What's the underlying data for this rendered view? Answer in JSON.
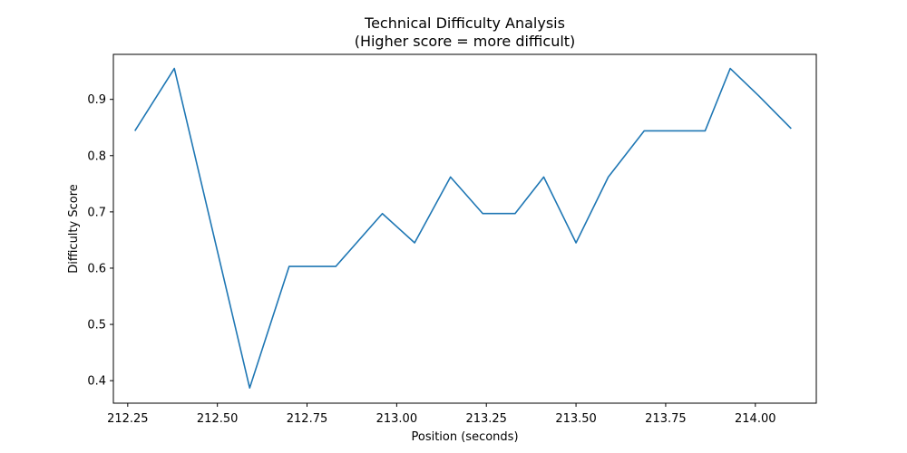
{
  "chart_data": {
    "type": "line",
    "title": "Technical Difficulty Analysis",
    "subtitle": "(Higher score = more difficult)",
    "xlabel": "Position (seconds)",
    "ylabel": "Difficulty Score",
    "xlim": [
      212.21,
      214.17
    ],
    "ylim": [
      0.36,
      0.98
    ],
    "xticks": [
      212.25,
      212.5,
      212.75,
      213.0,
      213.25,
      213.5,
      213.75,
      214.0
    ],
    "xtick_labels": [
      "212.25",
      "212.50",
      "212.75",
      "213.00",
      "213.25",
      "213.50",
      "213.75",
      "214.00"
    ],
    "yticks": [
      0.4,
      0.5,
      0.6,
      0.7,
      0.8,
      0.9
    ],
    "ytick_labels": [
      "0.4",
      "0.5",
      "0.6",
      "0.7",
      "0.8",
      "0.9"
    ],
    "grid": false,
    "color": "#1f77b4",
    "series": [
      {
        "x": [
          212.27,
          212.38,
          212.59,
          212.7,
          212.83,
          212.96,
          213.05,
          213.15,
          213.24,
          213.33,
          213.41,
          213.5,
          213.59,
          213.69,
          213.77,
          213.86,
          213.93,
          214.01,
          214.1
        ],
        "y": [
          0.844,
          0.955,
          0.387,
          0.603,
          0.603,
          0.697,
          0.645,
          0.762,
          0.697,
          0.697,
          0.762,
          0.645,
          0.762,
          0.844,
          0.844,
          0.844,
          0.955,
          0.906,
          0.848
        ]
      }
    ]
  }
}
